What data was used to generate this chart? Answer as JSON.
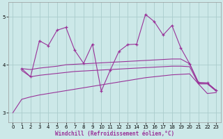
{
  "background_color": "#cce8e8",
  "grid_color": "#aacccc",
  "line_color": "#993399",
  "xlabel": "Windchill (Refroidissement éolien,°C)",
  "xlim": [
    -0.5,
    23.5
  ],
  "ylim": [
    2.8,
    5.3
  ],
  "yticks": [
    3,
    4,
    5
  ],
  "xticks": [
    0,
    1,
    2,
    3,
    4,
    5,
    6,
    7,
    8,
    9,
    10,
    11,
    12,
    13,
    14,
    15,
    16,
    17,
    18,
    19,
    20,
    21,
    22,
    23
  ],
  "series": {
    "line_bottom": {
      "x": [
        0,
        1,
        2,
        3,
        4,
        5,
        6,
        7,
        8,
        9,
        10,
        11,
        12,
        13,
        14,
        15,
        16,
        17,
        18,
        19,
        20,
        21,
        22,
        23
      ],
      "y": [
        3.0,
        3.28,
        3.33,
        3.37,
        3.4,
        3.43,
        3.46,
        3.49,
        3.52,
        3.55,
        3.58,
        3.61,
        3.64,
        3.67,
        3.7,
        3.73,
        3.75,
        3.77,
        3.79,
        3.8,
        3.81,
        3.6,
        3.4,
        3.42
      ]
    },
    "line_mid_low": {
      "x": [
        1,
        2,
        3,
        4,
        5,
        6,
        7,
        8,
        9,
        10,
        11,
        12,
        13,
        14,
        15,
        16,
        17,
        18,
        19,
        20,
        21,
        22,
        23
      ],
      "y": [
        3.88,
        3.75,
        3.78,
        3.8,
        3.82,
        3.84,
        3.86,
        3.87,
        3.88,
        3.89,
        3.9,
        3.91,
        3.92,
        3.93,
        3.94,
        3.95,
        3.96,
        3.97,
        3.97,
        3.96,
        3.6,
        3.6,
        3.45
      ]
    },
    "line_mid_high": {
      "x": [
        1,
        2,
        3,
        4,
        5,
        6,
        7,
        8,
        9,
        10,
        11,
        12,
        13,
        14,
        15,
        16,
        17,
        18,
        19,
        20,
        21,
        22,
        23
      ],
      "y": [
        3.92,
        3.9,
        3.93,
        3.95,
        3.97,
        4.0,
        4.01,
        4.02,
        4.03,
        4.04,
        4.05,
        4.06,
        4.07,
        4.08,
        4.09,
        4.1,
        4.11,
        4.12,
        4.12,
        4.02,
        3.63,
        3.62,
        3.47
      ]
    },
    "line_jagged": {
      "x": [
        1,
        2,
        3,
        4,
        5,
        6,
        7,
        8,
        9,
        10,
        11,
        12,
        13,
        14,
        15,
        16,
        17,
        18,
        19,
        20,
        21,
        22,
        23
      ],
      "y": [
        3.92,
        3.75,
        4.5,
        4.4,
        4.72,
        4.78,
        4.3,
        4.03,
        4.43,
        3.45,
        3.88,
        4.28,
        4.42,
        4.43,
        5.05,
        4.9,
        4.62,
        4.82,
        4.35,
        4.02,
        3.62,
        3.62,
        3.46
      ]
    }
  }
}
